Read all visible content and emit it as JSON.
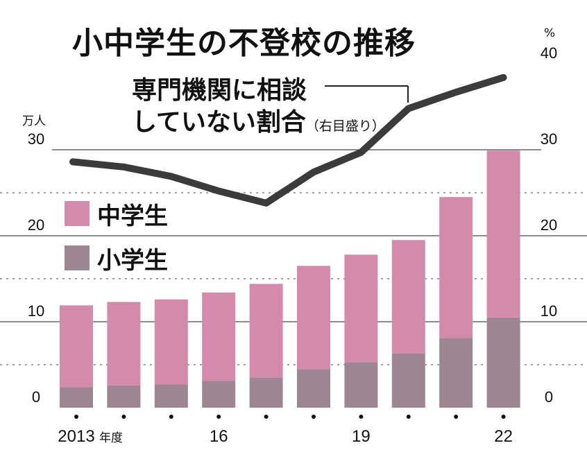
{
  "title": "小中学生の不登校の推移",
  "line_label": {
    "line1": "専門機関に相談",
    "line2": "していない割合",
    "note": "（右目盛り）"
  },
  "left_unit": "万人",
  "right_unit": "%",
  "legend": {
    "middle": "中学生",
    "elementary": "小学生"
  },
  "colors": {
    "middle": "#d38aab",
    "elementary": "#9e8592",
    "line": "#3b3b3b",
    "grid": "#666666"
  },
  "chart_data": {
    "type": "bar",
    "stacked": true,
    "categories": [
      "2013",
      "2014",
      "2015",
      "2016",
      "2017",
      "2018",
      "2019",
      "2020",
      "2021",
      "2022"
    ],
    "x_tick_labels": [
      "2013",
      "",
      "",
      "16",
      "",
      "",
      "19",
      "",
      "",
      "22"
    ],
    "x_suffix": "年度",
    "series": [
      {
        "name": "小学生",
        "values": [
          2.4,
          2.6,
          2.7,
          3.1,
          3.5,
          4.5,
          5.3,
          6.3,
          8.1,
          10.5
        ]
      },
      {
        "name": "中学生",
        "values": [
          9.5,
          9.7,
          9.9,
          10.3,
          10.9,
          12.0,
          12.5,
          13.2,
          16.4,
          19.4
        ]
      }
    ],
    "line_series": {
      "name": "専門機関に相談していない割合",
      "axis": "right",
      "values": [
        28.6,
        28.0,
        26.9,
        25.2,
        23.8,
        27.4,
        29.7,
        34.8,
        36.7,
        38.4
      ]
    },
    "ylim_left": [
      0,
      30
    ],
    "ylim_right": [
      0,
      40
    ],
    "y_ticks_left": [
      0,
      10,
      20,
      30
    ],
    "y_ticks_right": [
      0,
      10,
      20,
      30,
      40
    ]
  }
}
